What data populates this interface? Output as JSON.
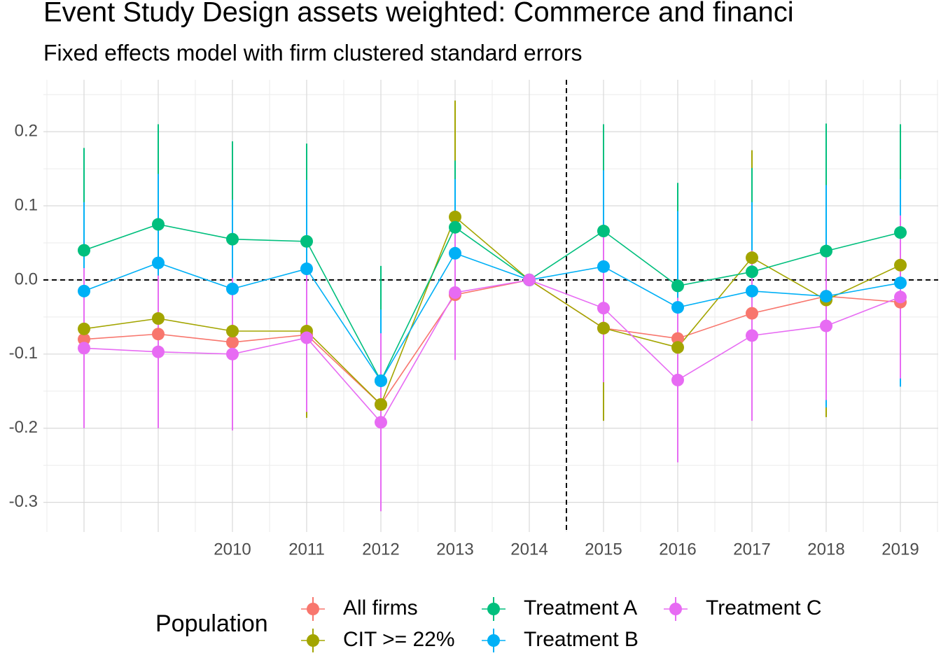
{
  "chart_data": {
    "type": "line",
    "title": "Event Study Design assets weighted: Commerce and financi",
    "subtitle": "Fixed effects model with firm clustered standard errors",
    "categories": [
      null,
      null,
      "2010",
      "2011",
      "2012",
      "2013",
      "2014",
      "2015",
      "2016",
      "2017",
      "2018",
      "2019"
    ],
    "ylim": [
      -0.34,
      0.27
    ],
    "yticks": [
      -0.3,
      -0.2,
      -0.1,
      {
        "value": 0,
        "label": "0.0"
      },
      0.1,
      0.2
    ],
    "grid": true,
    "hline": 0,
    "vline": 6.5,
    "legend_title": "Population",
    "legend": "bottom",
    "series": [
      {
        "name": "All firms",
        "color": "#F8766D",
        "values": [
          -0.08,
          -0.073,
          -0.084,
          -0.074,
          -0.168,
          -0.02,
          0.0,
          -0.065,
          -0.079,
          -0.045,
          -0.022,
          -0.03
        ],
        "errors": [
          0.11,
          0.11,
          0.11,
          0.1,
          0.12,
          0.08,
          0,
          0.11,
          0.12,
          0.11,
          0.12,
          0.11
        ]
      },
      {
        "name": "CIT >= 22%",
        "color": "#A3A500",
        "values": [
          -0.066,
          -0.052,
          -0.069,
          -0.069,
          -0.168,
          0.085,
          0.0,
          -0.065,
          -0.091,
          0.03,
          -0.027,
          0.02
        ],
        "errors": [
          0.13,
          0.125,
          0.117,
          0.117,
          0.13,
          0.157,
          0,
          0.125,
          0.14,
          0.145,
          0.158,
          0.15
        ]
      },
      {
        "name": "Treatment A",
        "color": "#00BF7D",
        "values": [
          0.04,
          0.075,
          0.055,
          0.052,
          -0.136,
          0.071,
          0.0,
          0.066,
          -0.008,
          0.011,
          0.039,
          0.064
        ],
        "errors": [
          0.138,
          0.135,
          0.132,
          0.132,
          0.155,
          0.09,
          0,
          0.144,
          0.139,
          0.14,
          0.172,
          0.146
        ]
      },
      {
        "name": "Treatment B",
        "color": "#00B0F6",
        "values": [
          -0.015,
          0.023,
          -0.012,
          0.015,
          -0.136,
          0.036,
          0.0,
          0.018,
          -0.037,
          -0.015,
          -0.022,
          -0.004
        ],
        "errors": [
          0.12,
          0.12,
          0.12,
          0.12,
          0.096,
          0.1,
          0,
          0.13,
          0.13,
          0.12,
          0.15,
          0.14
        ]
      },
      {
        "name": "Treatment C",
        "color": "#E76BF3",
        "values": [
          -0.092,
          -0.097,
          -0.1,
          -0.078,
          -0.192,
          -0.017,
          0.0,
          -0.038,
          -0.135,
          -0.075,
          -0.062,
          -0.023
        ],
        "errors": [
          0.108,
          0.103,
          0.103,
          0.1,
          0.12,
          0.091,
          0,
          0.1,
          0.111,
          0.115,
          0.1,
          0.11
        ]
      }
    ]
  }
}
